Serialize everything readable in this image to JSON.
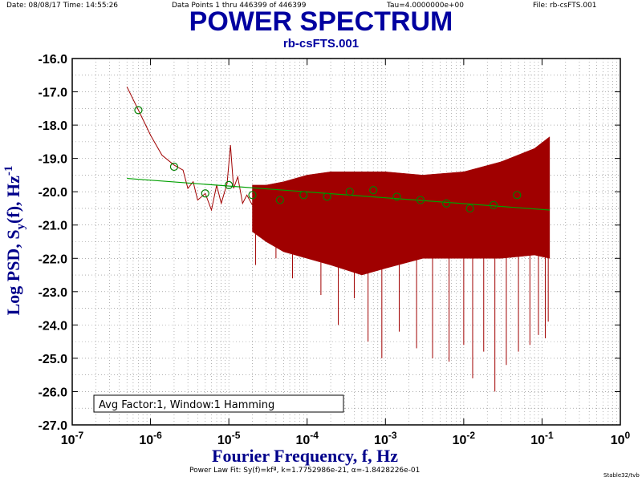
{
  "header": {
    "date_time": "Date: 08/08/17  Time: 14:55:26",
    "data_points": "Data Points 1 thru 446399 of 446399",
    "tau": "Tau=4.0000000e+00",
    "file": "File: rb-csFTS.001"
  },
  "footer": {
    "fit_text": "Power Law Fit: Sy(f)=kfª, k=1.7752986e-21, α=-1.8428226e-01",
    "credit": "Stable32/tvb"
  },
  "colors": {
    "title": "#0000a0",
    "axis_label": "#00008b",
    "spectrum": "#a00000",
    "fit_line": "#00a000",
    "markers": "#008000",
    "grid": "#808080"
  },
  "chart_data": {
    "type": "line",
    "title": "POWER SPECTRUM",
    "subtitle": "rb-csFTS.001",
    "xlabel": "Fourier Frequency, f, Hz",
    "ylabel": "Log PSD, S_y(f), Hz^-1",
    "x_scale": "log",
    "xlim": [
      1e-07,
      1
    ],
    "ylim": [
      -27.0,
      -16.0
    ],
    "x_ticks": [
      {
        "base": "10",
        "exp": "-7"
      },
      {
        "base": "10",
        "exp": "-6"
      },
      {
        "base": "10",
        "exp": "-5"
      },
      {
        "base": "10",
        "exp": "-4"
      },
      {
        "base": "10",
        "exp": "-3"
      },
      {
        "base": "10",
        "exp": "-2"
      },
      {
        "base": "10",
        "exp": "-1"
      },
      {
        "base": "10",
        "exp": "0"
      }
    ],
    "y_ticks": [
      "-16.0",
      "-17.0",
      "-18.0",
      "-19.0",
      "-20.0",
      "-21.0",
      "-22.0",
      "-23.0",
      "-24.0",
      "-25.0",
      "-26.0",
      "-27.0"
    ],
    "grid": true,
    "annotation": "Avg Factor:1, Window:1 Hamming",
    "series": [
      {
        "kind": "psd",
        "low_freq_trace": [
          [
            5e-07,
            -16.85
          ],
          [
            7e-07,
            -17.55
          ],
          [
            1e-06,
            -18.3
          ],
          [
            1.4e-06,
            -18.9
          ],
          [
            2e-06,
            -19.2
          ],
          [
            2.6e-06,
            -19.35
          ],
          [
            3e-06,
            -19.9
          ],
          [
            3.5e-06,
            -19.7
          ],
          [
            4e-06,
            -20.25
          ],
          [
            5e-06,
            -20.05
          ],
          [
            6e-06,
            -20.55
          ],
          [
            7e-06,
            -19.8
          ],
          [
            8e-06,
            -20.35
          ],
          [
            9.5e-06,
            -19.75
          ],
          [
            1.05e-05,
            -18.6
          ],
          [
            1.15e-05,
            -19.9
          ],
          [
            1.3e-05,
            -19.55
          ],
          [
            1.5e-05,
            -20.35
          ],
          [
            1.7e-05,
            -20.1
          ],
          [
            2e-05,
            -20.4
          ]
        ],
        "envelope": [
          {
            "f": 2e-05,
            "upper": -19.8,
            "lower": -21.2
          },
          {
            "f": 3e-05,
            "upper": -19.8,
            "lower": -21.5
          },
          {
            "f": 5e-05,
            "upper": -19.7,
            "lower": -21.8
          },
          {
            "f": 0.0001,
            "upper": -19.5,
            "lower": -22.0
          },
          {
            "f": 0.0002,
            "upper": -19.4,
            "lower": -22.2
          },
          {
            "f": 0.0005,
            "upper": -19.4,
            "lower": -22.5
          },
          {
            "f": 0.001,
            "upper": -19.4,
            "lower": -22.3
          },
          {
            "f": 0.003,
            "upper": -19.5,
            "lower": -22.0
          },
          {
            "f": 0.01,
            "upper": -19.4,
            "lower": -22.0
          },
          {
            "f": 0.03,
            "upper": -19.1,
            "lower": -22.0
          },
          {
            "f": 0.08,
            "upper": -18.7,
            "lower": -21.9
          },
          {
            "f": 0.125,
            "upper": -18.35,
            "lower": -22.0
          }
        ],
        "spikes": [
          [
            2.2e-05,
            -22.2
          ],
          [
            4e-05,
            -22.0
          ],
          [
            6.5e-05,
            -22.6
          ],
          [
            0.00015,
            -23.1
          ],
          [
            0.00025,
            -24.0
          ],
          [
            0.0004,
            -23.2
          ],
          [
            0.0006,
            -24.5
          ],
          [
            0.0009,
            -25.0
          ],
          [
            0.0015,
            -24.2
          ],
          [
            0.0025,
            -24.7
          ],
          [
            0.004,
            -25.0
          ],
          [
            0.0065,
            -25.1
          ],
          [
            0.01,
            -24.6
          ],
          [
            0.013,
            -25.6
          ],
          [
            0.018,
            -24.8
          ],
          [
            0.025,
            -26.0
          ],
          [
            0.035,
            -25.2
          ],
          [
            0.05,
            -24.8
          ],
          [
            0.07,
            -24.6
          ],
          [
            0.09,
            -24.3
          ],
          [
            0.11,
            -24.4
          ],
          [
            0.12,
            -23.9
          ]
        ]
      },
      {
        "kind": "fit",
        "points": [
          [
            5e-07,
            -19.6
          ],
          [
            0.125,
            -20.55
          ]
        ]
      },
      {
        "kind": "averaged_points",
        "points": [
          [
            7e-07,
            -17.55
          ],
          [
            2e-06,
            -19.25
          ],
          [
            5e-06,
            -20.05
          ],
          [
            1e-05,
            -19.8
          ],
          [
            2e-05,
            -20.1
          ],
          [
            4.5e-05,
            -20.25
          ],
          [
            9e-05,
            -20.1
          ],
          [
            0.00018,
            -20.15
          ],
          [
            0.00035,
            -20.0
          ],
          [
            0.0007,
            -19.95
          ],
          [
            0.0014,
            -20.15
          ],
          [
            0.0028,
            -20.25
          ],
          [
            0.006,
            -20.35
          ],
          [
            0.012,
            -20.5
          ],
          [
            0.024,
            -20.4
          ],
          [
            0.048,
            -20.1
          ]
        ]
      }
    ]
  }
}
